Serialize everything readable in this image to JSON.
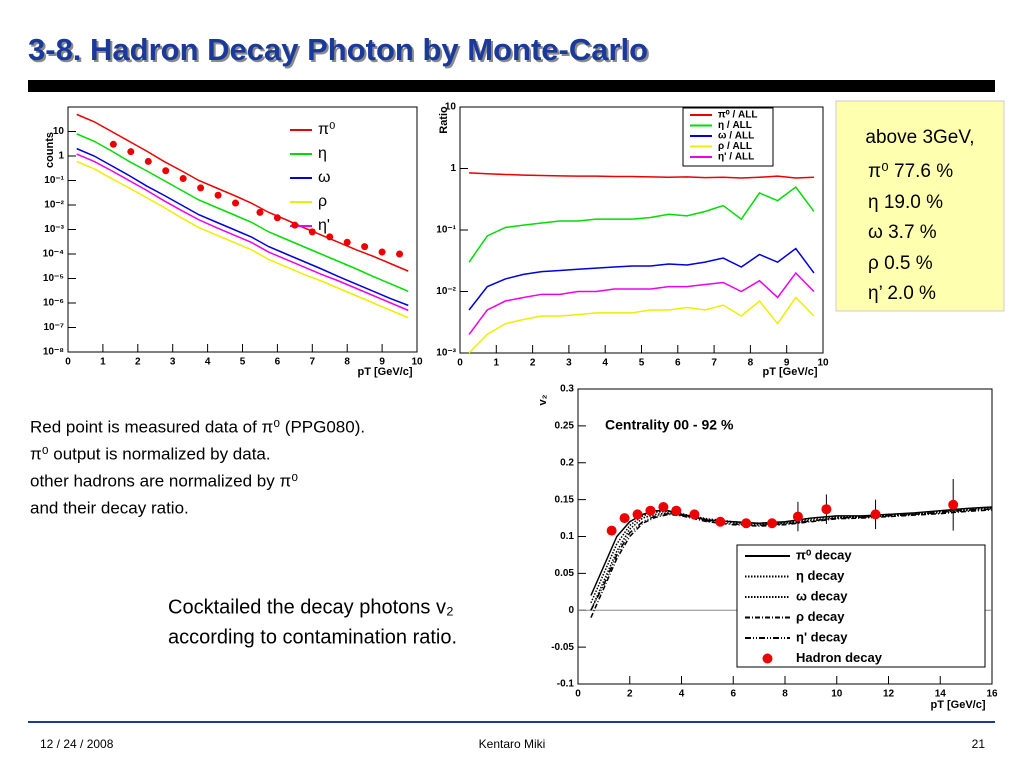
{
  "slide": {
    "title": "3-8. Hadron Decay Photon by Monte-Carlo",
    "box": {
      "heading": "above 3GeV,",
      "lines": [
        "π⁰ 77.6 %",
        "η  19.0 %",
        "ω   3.7 %",
        "ρ   0.5 %",
        "η’  2.0 %"
      ]
    },
    "notes": [
      "Red point is measured data of π⁰ (PPG080).",
      "π⁰ output is normalized by data.",
      "other hadrons are normalized by π⁰",
      " and their decay ratio."
    ],
    "cocktail": [
      "Cocktailed the decay photons v₂",
      "according to contamination ratio."
    ],
    "footer": {
      "date": "12 / 24 / 2008",
      "author": "Kentaro Miki",
      "page": "21"
    }
  },
  "chart_data": [
    {
      "type": "line",
      "log_y": true,
      "xlabel": "pT [GeV/c]",
      "ylabel": "counts",
      "legend": "right",
      "xlim": [
        0,
        10
      ],
      "xticks": [
        0,
        1,
        2,
        3,
        4,
        5,
        6,
        7,
        8,
        9,
        10
      ],
      "ylim": [
        1e-08,
        100
      ],
      "yticks": [
        {
          "value": 1e-08,
          "label": "10⁻⁸"
        },
        {
          "value": 1e-07,
          "label": "10⁻⁷"
        },
        {
          "value": 1e-06,
          "label": "10⁻⁶"
        },
        {
          "value": 1e-05,
          "label": "10⁻⁵"
        },
        {
          "value": 0.0001,
          "label": "10⁻⁴"
        },
        {
          "value": 0.001,
          "label": "10⁻³"
        },
        {
          "value": 0.01,
          "label": "10⁻²"
        },
        {
          "value": 0.1,
          "label": "10⁻¹"
        },
        1,
        10
      ],
      "x": [
        0.25,
        0.75,
        1.25,
        1.75,
        2.25,
        2.75,
        3.25,
        3.75,
        4.25,
        4.75,
        5.25,
        5.75,
        6.25,
        6.75,
        7.25,
        7.75,
        8.25,
        8.75,
        9.25,
        9.75
      ],
      "series": [
        {
          "name": "π⁰",
          "color": "#ee0000",
          "values": [
            50,
            25,
            10,
            4,
            1.6,
            0.6,
            0.25,
            0.1,
            0.05,
            0.025,
            0.012,
            0.005,
            0.0025,
            0.0012,
            0.0006,
            0.0003,
            0.00015,
            8e-05,
            4e-05,
            2e-05
          ]
        },
        {
          "name": "η",
          "color": "#00dd00",
          "values": [
            8,
            4,
            1.6,
            0.6,
            0.25,
            0.1,
            0.04,
            0.016,
            0.008,
            0.004,
            0.002,
            0.0008,
            0.0004,
            0.0002,
            0.0001,
            5e-05,
            2.5e-05,
            1.2e-05,
            6e-06,
            3e-06
          ]
        },
        {
          "name": "ω",
          "color": "#0000dd",
          "values": [
            2,
            1,
            0.4,
            0.16,
            0.06,
            0.025,
            0.01,
            0.004,
            0.002,
            0.001,
            0.0005,
            0.0002,
            0.0001,
            5e-05,
            2.5e-05,
            1.2e-05,
            6e-06,
            3e-06,
            1.5e-06,
            8e-07
          ]
        },
        {
          "name": "ρ",
          "color": "#eeee00",
          "values": [
            0.6,
            0.3,
            0.12,
            0.05,
            0.02,
            0.008,
            0.003,
            0.0012,
            0.0006,
            0.0003,
            0.00015,
            6e-05,
            3e-05,
            1.5e-05,
            8e-06,
            4e-06,
            2e-06,
            1e-06,
            5e-07,
            2.5e-07
          ]
        },
        {
          "name": "η'",
          "color": "#ee00ee",
          "values": [
            1.2,
            0.6,
            0.25,
            0.1,
            0.04,
            0.015,
            0.006,
            0.0025,
            0.0012,
            0.0006,
            0.0003,
            0.00012,
            6e-05,
            3e-05,
            1.5e-05,
            8e-06,
            4e-06,
            2e-06,
            1e-06,
            5e-07
          ]
        }
      ],
      "points": {
        "color": "#ee0000",
        "x": [
          1.3,
          1.8,
          2.3,
          2.8,
          3.3,
          3.8,
          4.3,
          4.8,
          5.5,
          6,
          6.5,
          7,
          7.5,
          8,
          8.5,
          9,
          9.5
        ],
        "values": [
          3,
          1.5,
          0.6,
          0.25,
          0.12,
          0.05,
          0.025,
          0.012,
          0.005,
          0.003,
          0.0015,
          0.0008,
          0.0005,
          0.0003,
          0.0002,
          0.00012,
          0.0001
        ]
      }
    },
    {
      "type": "line",
      "log_y": true,
      "xlabel": "pT [GeV/c]",
      "ylabel": "Ratio",
      "legend": "upper right",
      "xlim": [
        0,
        10
      ],
      "xticks": [
        0,
        1,
        2,
        3,
        4,
        5,
        6,
        7,
        8,
        9,
        10
      ],
      "ylim": [
        0.001,
        10
      ],
      "yticks": [
        {
          "value": 0.001,
          "label": "10⁻³"
        },
        {
          "value": 0.01,
          "label": "10⁻²"
        },
        {
          "value": 0.1,
          "label": "10⁻¹"
        },
        1,
        10
      ],
      "x": [
        0.25,
        0.75,
        1.25,
        1.75,
        2.25,
        2.75,
        3.25,
        3.75,
        4.25,
        4.75,
        5.25,
        5.75,
        6.25,
        6.75,
        7.25,
        7.75,
        8.25,
        8.75,
        9.25,
        9.75
      ],
      "series": [
        {
          "name": "π⁰ / ALL",
          "color": "#ee0000",
          "values": [
            0.85,
            0.82,
            0.8,
            0.78,
            0.77,
            0.76,
            0.75,
            0.75,
            0.74,
            0.74,
            0.73,
            0.72,
            0.73,
            0.71,
            0.72,
            0.7,
            0.72,
            0.75,
            0.7,
            0.72
          ]
        },
        {
          "name": "η / ALL",
          "color": "#00dd00",
          "values": [
            0.03,
            0.08,
            0.11,
            0.12,
            0.13,
            0.14,
            0.14,
            0.15,
            0.15,
            0.15,
            0.16,
            0.18,
            0.17,
            0.2,
            0.25,
            0.15,
            0.4,
            0.3,
            0.5,
            0.2
          ]
        },
        {
          "name": "ω / ALL",
          "color": "#0000dd",
          "values": [
            0.005,
            0.012,
            0.016,
            0.019,
            0.021,
            0.022,
            0.023,
            0.024,
            0.025,
            0.026,
            0.026,
            0.028,
            0.027,
            0.03,
            0.035,
            0.025,
            0.04,
            0.03,
            0.05,
            0.02
          ]
        },
        {
          "name": "ρ / ALL",
          "color": "#eeee00",
          "values": [
            0.001,
            0.002,
            0.003,
            0.0035,
            0.004,
            0.004,
            0.0042,
            0.0045,
            0.0045,
            0.0045,
            0.005,
            0.005,
            0.0055,
            0.005,
            0.006,
            0.004,
            0.007,
            0.003,
            0.008,
            0.004
          ]
        },
        {
          "name": "η' / ALL",
          "color": "#ee00ee",
          "values": [
            0.002,
            0.005,
            0.007,
            0.008,
            0.009,
            0.009,
            0.01,
            0.01,
            0.011,
            0.011,
            0.011,
            0.012,
            0.012,
            0.013,
            0.014,
            0.01,
            0.015,
            0.008,
            0.02,
            0.01
          ]
        }
      ]
    },
    {
      "type": "line",
      "log_y": false,
      "xlabel": "pT [GeV/c]",
      "ylabel": "v₂",
      "annotation": "Centrality 00 - 92 %",
      "legend": "lower right",
      "zero_line": true,
      "xlim": [
        0,
        16
      ],
      "xticks": [
        0,
        2,
        4,
        6,
        8,
        10,
        12,
        14,
        16
      ],
      "ylim": [
        -0.1,
        0.3
      ],
      "yticks": [
        -0.1,
        -0.05,
        0,
        0.05,
        0.1,
        0.15,
        0.2,
        0.25,
        0.3
      ],
      "x": [
        0.5,
        1,
        1.5,
        2,
        2.5,
        3,
        3.5,
        4,
        5,
        6,
        7,
        8,
        9,
        10,
        11,
        12,
        13,
        14,
        15,
        16
      ],
      "series": [
        {
          "name": "π⁰ decay",
          "color": "#000000",
          "dash": "solid",
          "values": [
            0.02,
            0.06,
            0.1,
            0.12,
            0.13,
            0.135,
            0.135,
            0.13,
            0.122,
            0.12,
            0.118,
            0.12,
            0.125,
            0.128,
            0.128,
            0.13,
            0.132,
            0.135,
            0.138,
            0.14
          ]
        },
        {
          "name": "η decay",
          "color": "#000000",
          "dash": "dotted",
          "values": [
            0.0,
            0.04,
            0.08,
            0.11,
            0.125,
            0.13,
            0.132,
            0.13,
            0.124,
            0.12,
            0.117,
            0.118,
            0.122,
            0.125,
            0.127,
            0.128,
            0.13,
            0.132,
            0.135,
            0.138
          ]
        },
        {
          "name": "ω decay",
          "color": "#000000",
          "dash": "dotted",
          "values": [
            0.01,
            0.05,
            0.09,
            0.115,
            0.128,
            0.133,
            0.134,
            0.131,
            0.123,
            0.119,
            0.116,
            0.119,
            0.124,
            0.127,
            0.126,
            0.13,
            0.131,
            0.134,
            0.137,
            0.139
          ]
        },
        {
          "name": "ρ decay",
          "color": "#000000",
          "dash": "dashdot",
          "values": [
            -0.01,
            0.03,
            0.07,
            0.1,
            0.118,
            0.126,
            0.13,
            0.128,
            0.12,
            0.116,
            0.114,
            0.116,
            0.12,
            0.124,
            0.125,
            0.127,
            0.129,
            0.131,
            0.134,
            0.136
          ]
        },
        {
          "name": "η' decay",
          "color": "#000000",
          "dash": "dashdotdot",
          "values": [
            0.0,
            0.035,
            0.075,
            0.105,
            0.12,
            0.128,
            0.131,
            0.129,
            0.121,
            0.117,
            0.115,
            0.117,
            0.121,
            0.125,
            0.126,
            0.128,
            0.13,
            0.133,
            0.136,
            0.137
          ]
        },
        {
          "name": "Hadron decay",
          "color": "#ee0000",
          "marker": true,
          "x": [
            1.3,
            1.8,
            2.3,
            2.8,
            3.3,
            3.8,
            4.5,
            5.5,
            6.5,
            7.5,
            8.5,
            9.6,
            11.5,
            14.5
          ],
          "values": [
            0.108,
            0.125,
            0.13,
            0.135,
            0.14,
            0.135,
            0.13,
            0.12,
            0.118,
            0.118,
            0.127,
            0.137,
            0.13,
            0.143
          ],
          "errors": [
            0.005,
            0.005,
            0.005,
            0.005,
            0.005,
            0.005,
            0.005,
            0.005,
            0.005,
            0.005,
            0.02,
            0.02,
            0.02,
            0.035
          ]
        }
      ]
    }
  ]
}
